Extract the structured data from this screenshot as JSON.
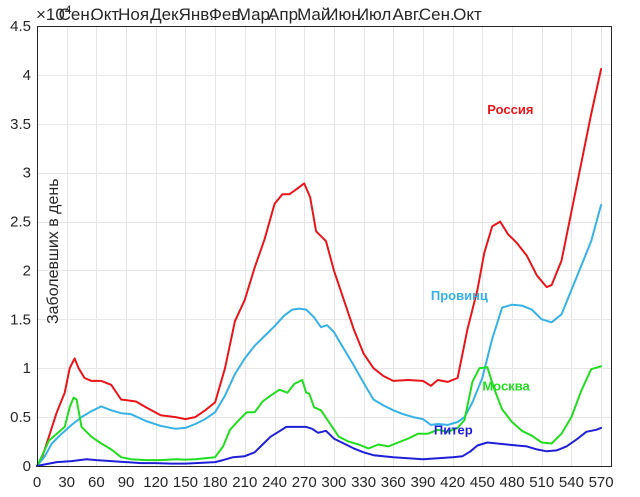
{
  "chart_data": {
    "type": "line",
    "title": "",
    "xlabel": "",
    "ylabel": "Заболевших в день",
    "exponent_label": "×10",
    "exponent_power": "4",
    "xlim": [
      0,
      580
    ],
    "ylim": [
      0,
      45000
    ],
    "y_scale": 10000,
    "xticks": [
      0,
      30,
      60,
      90,
      120,
      150,
      180,
      210,
      240,
      270,
      300,
      330,
      360,
      390,
      420,
      450,
      480,
      510,
      540,
      570
    ],
    "yticks": [
      0,
      5000,
      10000,
      15000,
      20000,
      25000,
      30000,
      35000,
      40000,
      45000
    ],
    "ytick_labels": [
      "0",
      "0.5",
      "1",
      "1.5",
      "2",
      "2.5",
      "3",
      "3.5",
      "4",
      "4.5"
    ],
    "grid": true,
    "top_axis_labels": [
      {
        "x": 15,
        "label": "."
      },
      {
        "x": 40,
        "label": "Сен."
      },
      {
        "x": 70,
        "label": "Окт."
      },
      {
        "x": 100,
        "label": "Ноя."
      },
      {
        "x": 131,
        "label": "Дек."
      },
      {
        "x": 161,
        "label": "Янв."
      },
      {
        "x": 192,
        "label": "Фев."
      },
      {
        "x": 221,
        "label": "Мар."
      },
      {
        "x": 251,
        "label": "Апр."
      },
      {
        "x": 282,
        "label": "Май."
      },
      {
        "x": 312,
        "label": "Июн."
      },
      {
        "x": 343,
        "label": "Июл."
      },
      {
        "x": 374,
        "label": "Авг."
      },
      {
        "x": 404,
        "label": "Сен."
      },
      {
        "x": 435,
        "label": "Окт"
      }
    ],
    "series": [
      {
        "name": "Россия",
        "color": "#e8161b",
        "label_at": [
          455,
          36000
        ],
        "points": [
          [
            0,
            0
          ],
          [
            5,
            800
          ],
          [
            12,
            3000
          ],
          [
            20,
            5500
          ],
          [
            28,
            7500
          ],
          [
            33,
            10000
          ],
          [
            38,
            11000
          ],
          [
            42,
            10000
          ],
          [
            48,
            9000
          ],
          [
            55,
            8700
          ],
          [
            65,
            8700
          ],
          [
            75,
            8300
          ],
          [
            85,
            6800
          ],
          [
            100,
            6600
          ],
          [
            110,
            6000
          ],
          [
            125,
            5200
          ],
          [
            140,
            5000
          ],
          [
            150,
            4800
          ],
          [
            160,
            5000
          ],
          [
            170,
            5700
          ],
          [
            180,
            6500
          ],
          [
            190,
            10000
          ],
          [
            200,
            14800
          ],
          [
            210,
            17000
          ],
          [
            220,
            20300
          ],
          [
            230,
            23200
          ],
          [
            240,
            26800
          ],
          [
            248,
            27800
          ],
          [
            255,
            27800
          ],
          [
            262,
            28300
          ],
          [
            270,
            28900
          ],
          [
            276,
            27500
          ],
          [
            282,
            24000
          ],
          [
            287,
            23500
          ],
          [
            292,
            23000
          ],
          [
            300,
            20000
          ],
          [
            310,
            17000
          ],
          [
            320,
            14000
          ],
          [
            330,
            11500
          ],
          [
            340,
            10000
          ],
          [
            350,
            9200
          ],
          [
            360,
            8700
          ],
          [
            375,
            8800
          ],
          [
            390,
            8700
          ],
          [
            398,
            8200
          ],
          [
            405,
            8800
          ],
          [
            415,
            8600
          ],
          [
            425,
            9000
          ],
          [
            435,
            14000
          ],
          [
            445,
            18000
          ],
          [
            452,
            21800
          ],
          [
            460,
            24500
          ],
          [
            468,
            25000
          ],
          [
            476,
            23700
          ],
          [
            485,
            22800
          ],
          [
            495,
            21500
          ],
          [
            505,
            19500
          ],
          [
            515,
            18300
          ],
          [
            520,
            18500
          ],
          [
            530,
            21000
          ],
          [
            540,
            26000
          ],
          [
            550,
            31000
          ],
          [
            560,
            36000
          ],
          [
            570,
            40600
          ]
        ]
      },
      {
        "name": "Провинц",
        "color": "#36b2e6",
        "label_at": [
          398,
          17000
        ],
        "points": [
          [
            0,
            0
          ],
          [
            8,
            1000
          ],
          [
            15,
            2300
          ],
          [
            25,
            3300
          ],
          [
            35,
            4200
          ],
          [
            45,
            5000
          ],
          [
            55,
            5600
          ],
          [
            65,
            6100
          ],
          [
            75,
            5700
          ],
          [
            85,
            5400
          ],
          [
            95,
            5300
          ],
          [
            110,
            4600
          ],
          [
            125,
            4100
          ],
          [
            140,
            3800
          ],
          [
            150,
            3900
          ],
          [
            160,
            4300
          ],
          [
            170,
            4800
          ],
          [
            180,
            5500
          ],
          [
            190,
            7200
          ],
          [
            200,
            9400
          ],
          [
            210,
            11000
          ],
          [
            220,
            12300
          ],
          [
            230,
            13300
          ],
          [
            240,
            14300
          ],
          [
            250,
            15400
          ],
          [
            258,
            16000
          ],
          [
            265,
            16100
          ],
          [
            272,
            16000
          ],
          [
            280,
            15200
          ],
          [
            287,
            14200
          ],
          [
            293,
            14400
          ],
          [
            300,
            13700
          ],
          [
            310,
            12000
          ],
          [
            320,
            10300
          ],
          [
            330,
            8500
          ],
          [
            340,
            6800
          ],
          [
            350,
            6200
          ],
          [
            360,
            5700
          ],
          [
            370,
            5300
          ],
          [
            380,
            5000
          ],
          [
            390,
            4800
          ],
          [
            398,
            4200
          ],
          [
            405,
            4300
          ],
          [
            415,
            4200
          ],
          [
            425,
            4500
          ],
          [
            432,
            5000
          ],
          [
            440,
            6500
          ],
          [
            450,
            9000
          ],
          [
            460,
            13000
          ],
          [
            470,
            16200
          ],
          [
            480,
            16500
          ],
          [
            490,
            16400
          ],
          [
            500,
            16000
          ],
          [
            510,
            15000
          ],
          [
            520,
            14700
          ],
          [
            530,
            15500
          ],
          [
            540,
            18000
          ],
          [
            550,
            20500
          ],
          [
            560,
            23000
          ],
          [
            570,
            26700
          ]
        ]
      },
      {
        "name": "Москва",
        "color": "#22dc1f",
        "label_at": [
          450,
          7700
        ],
        "points": [
          [
            0,
            0
          ],
          [
            5,
            1000
          ],
          [
            12,
            2600
          ],
          [
            20,
            3300
          ],
          [
            28,
            4000
          ],
          [
            33,
            6000
          ],
          [
            37,
            7000
          ],
          [
            40,
            6800
          ],
          [
            45,
            4000
          ],
          [
            55,
            3000
          ],
          [
            65,
            2300
          ],
          [
            75,
            1700
          ],
          [
            85,
            900
          ],
          [
            95,
            700
          ],
          [
            110,
            600
          ],
          [
            125,
            600
          ],
          [
            140,
            700
          ],
          [
            150,
            650
          ],
          [
            160,
            700
          ],
          [
            170,
            800
          ],
          [
            180,
            900
          ],
          [
            188,
            2000
          ],
          [
            195,
            3700
          ],
          [
            205,
            4800
          ],
          [
            212,
            5500
          ],
          [
            220,
            5500
          ],
          [
            228,
            6600
          ],
          [
            236,
            7200
          ],
          [
            245,
            7800
          ],
          [
            253,
            7500
          ],
          [
            260,
            8400
          ],
          [
            268,
            8800
          ],
          [
            272,
            7500
          ],
          [
            275,
            7400
          ],
          [
            280,
            6000
          ],
          [
            287,
            5700
          ],
          [
            295,
            4500
          ],
          [
            305,
            3000
          ],
          [
            315,
            2500
          ],
          [
            325,
            2200
          ],
          [
            335,
            1800
          ],
          [
            345,
            2200
          ],
          [
            355,
            2000
          ],
          [
            365,
            2400
          ],
          [
            375,
            2800
          ],
          [
            385,
            3300
          ],
          [
            395,
            3300
          ],
          [
            405,
            3700
          ],
          [
            415,
            3500
          ],
          [
            425,
            3900
          ],
          [
            432,
            4700
          ],
          [
            440,
            8600
          ],
          [
            447,
            10000
          ],
          [
            455,
            10100
          ],
          [
            462,
            7900
          ],
          [
            470,
            5800
          ],
          [
            480,
            4500
          ],
          [
            490,
            3600
          ],
          [
            500,
            3100
          ],
          [
            510,
            2400
          ],
          [
            520,
            2300
          ],
          [
            530,
            3300
          ],
          [
            540,
            5000
          ],
          [
            550,
            7700
          ],
          [
            560,
            9900
          ],
          [
            570,
            10200
          ]
        ]
      },
      {
        "name": "Питер",
        "color": "#1f1fd6",
        "label_at": [
          401,
          3200
        ],
        "points": [
          [
            0,
            0
          ],
          [
            10,
            200
          ],
          [
            20,
            400
          ],
          [
            35,
            500
          ],
          [
            50,
            700
          ],
          [
            60,
            600
          ],
          [
            75,
            500
          ],
          [
            90,
            400
          ],
          [
            105,
            300
          ],
          [
            120,
            300
          ],
          [
            135,
            250
          ],
          [
            150,
            250
          ],
          [
            160,
            300
          ],
          [
            170,
            350
          ],
          [
            180,
            400
          ],
          [
            188,
            600
          ],
          [
            198,
            900
          ],
          [
            210,
            1000
          ],
          [
            220,
            1400
          ],
          [
            228,
            2200
          ],
          [
            236,
            3000
          ],
          [
            244,
            3500
          ],
          [
            252,
            4000
          ],
          [
            262,
            4000
          ],
          [
            272,
            4000
          ],
          [
            278,
            3800
          ],
          [
            284,
            3400
          ],
          [
            292,
            3600
          ],
          [
            300,
            2800
          ],
          [
            310,
            2300
          ],
          [
            320,
            1800
          ],
          [
            330,
            1400
          ],
          [
            340,
            1100
          ],
          [
            350,
            1000
          ],
          [
            360,
            900
          ],
          [
            375,
            800
          ],
          [
            390,
            700
          ],
          [
            405,
            800
          ],
          [
            420,
            900
          ],
          [
            430,
            1000
          ],
          [
            438,
            1500
          ],
          [
            445,
            2100
          ],
          [
            455,
            2400
          ],
          [
            465,
            2300
          ],
          [
            475,
            2200
          ],
          [
            485,
            2100
          ],
          [
            495,
            2000
          ],
          [
            505,
            1700
          ],
          [
            515,
            1500
          ],
          [
            525,
            1600
          ],
          [
            535,
            2000
          ],
          [
            545,
            2700
          ],
          [
            555,
            3500
          ],
          [
            565,
            3700
          ],
          [
            570,
            3900
          ]
        ]
      }
    ]
  }
}
